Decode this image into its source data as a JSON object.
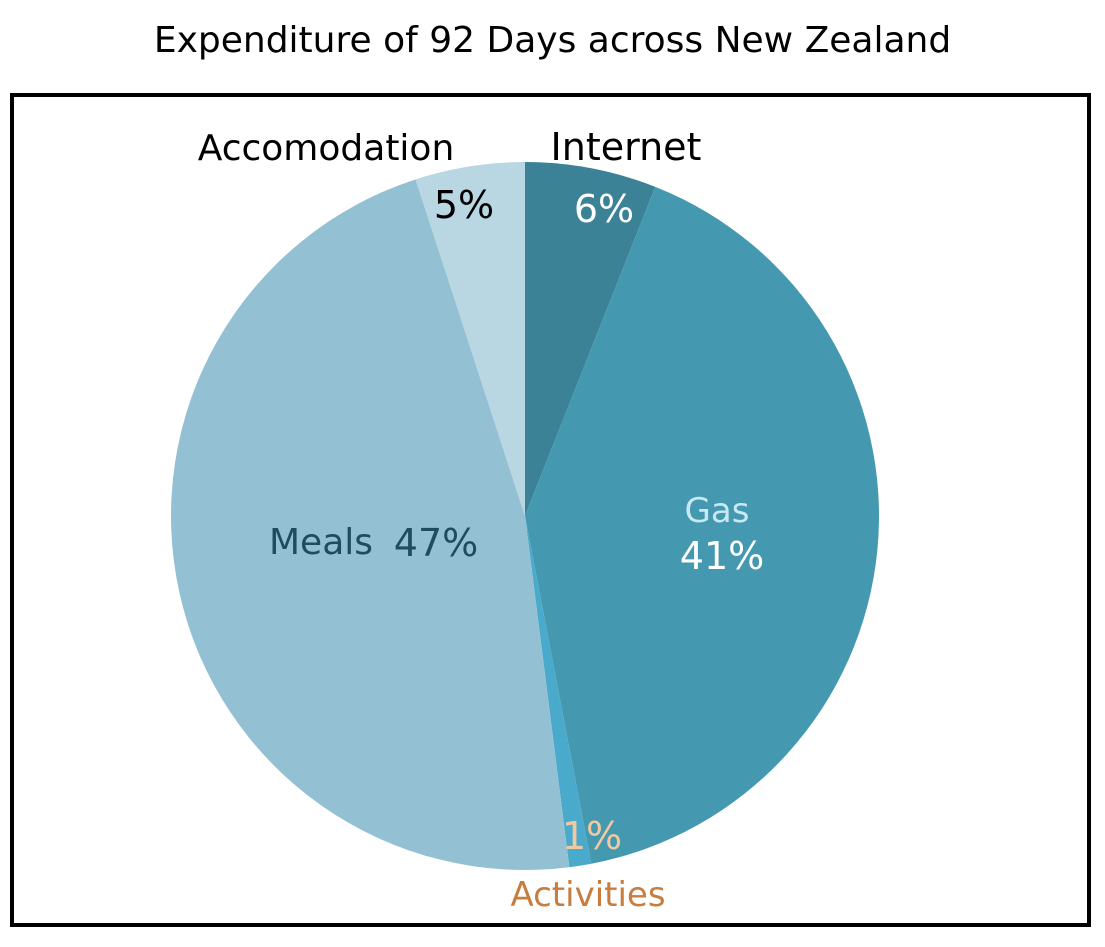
{
  "chart_data": {
    "type": "pie",
    "title": "Expenditure of 92 Days across New Zealand",
    "slices": [
      {
        "name": "Internet",
        "value": 6,
        "label": "6%",
        "color": "#3b8297"
      },
      {
        "name": "Gas",
        "value": 41,
        "label": "41%",
        "color": "#4499b0"
      },
      {
        "name": "Activities",
        "value": 1,
        "label": "1%",
        "color": "#4aaacb"
      },
      {
        "name": "Meals",
        "value": 47,
        "label": "47%",
        "color": "#93c1d3"
      },
      {
        "name": "Accomodation",
        "value": 5,
        "label": "5%",
        "color": "#b9d6e3"
      }
    ],
    "label_colors": {
      "Internet": {
        "name": "#000000",
        "pct": "#ffffff"
      },
      "Gas": {
        "name": "#c9e8f2",
        "pct": "#ffffff"
      },
      "Activities": {
        "name": "#c87d3e",
        "pct": "#f0c9a0"
      },
      "Meals": {
        "name": "#1e4e5e",
        "pct": "#1e4e5e"
      },
      "Accomodation": {
        "name": "#000000",
        "pct": "#000000"
      }
    }
  }
}
